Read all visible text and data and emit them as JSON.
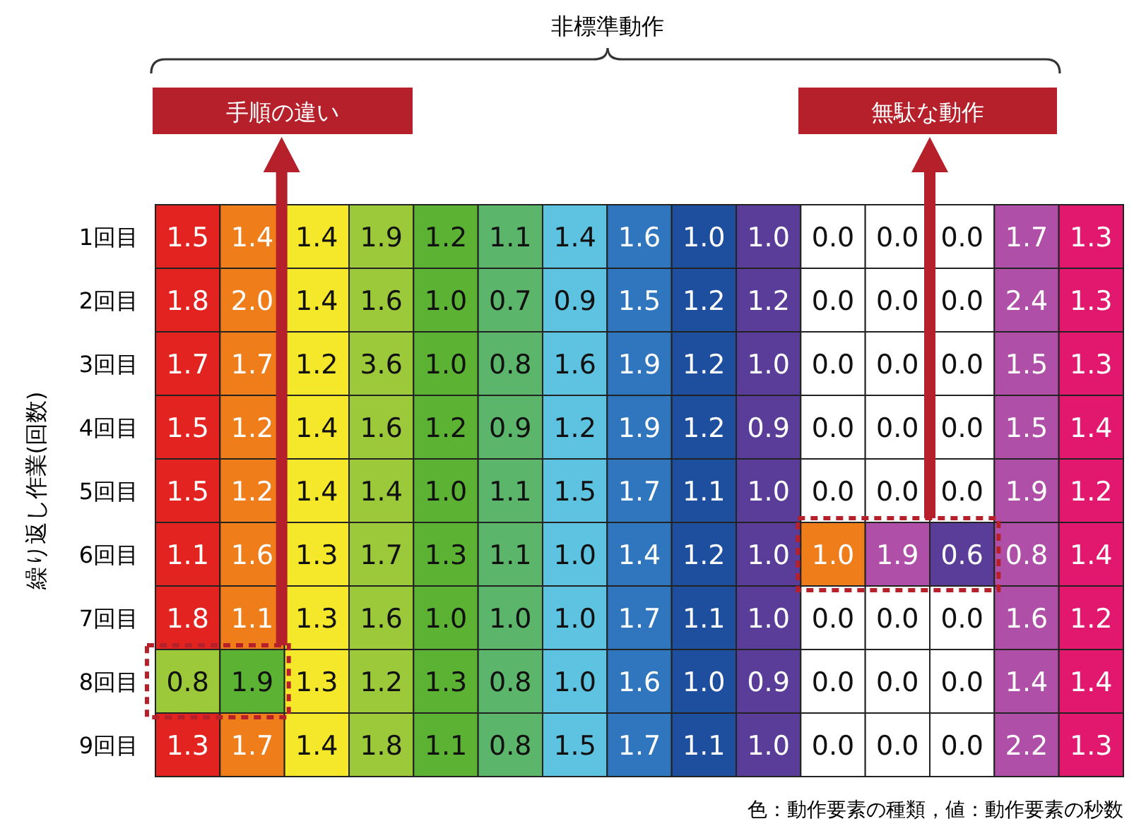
{
  "chart_data": {
    "type": "heatmap",
    "title": "非標準動作",
    "ylabel": "繰り返し作業(回数)",
    "categories": [
      null,
      null,
      null,
      null,
      null,
      null,
      null,
      null,
      null,
      null,
      null,
      null,
      null,
      null,
      null
    ],
    "y_categories": [
      "1回目",
      "2回目",
      "3回目",
      "4回目",
      "5回目",
      "6回目",
      "7回目",
      "8回目",
      "9回目"
    ],
    "cells": [
      [
        1.5,
        1.4,
        1.4,
        1.9,
        1.2,
        1.1,
        1.4,
        1.6,
        1.0,
        1.0,
        0.0,
        0.0,
        0.0,
        1.7,
        1.3
      ],
      [
        1.8,
        2.0,
        1.4,
        1.6,
        1.0,
        0.7,
        0.9,
        1.5,
        1.2,
        1.2,
        0.0,
        0.0,
        0.0,
        2.4,
        1.3
      ],
      [
        1.7,
        1.7,
        1.2,
        3.6,
        1.0,
        0.8,
        1.6,
        1.9,
        1.2,
        1.0,
        0.0,
        0.0,
        0.0,
        1.5,
        1.3
      ],
      [
        1.5,
        1.2,
        1.4,
        1.6,
        1.2,
        0.9,
        1.2,
        1.9,
        1.2,
        0.9,
        0.0,
        0.0,
        0.0,
        1.5,
        1.4
      ],
      [
        1.5,
        1.2,
        1.4,
        1.4,
        1.0,
        1.1,
        1.5,
        1.7,
        1.1,
        1.0,
        0.0,
        0.0,
        0.0,
        1.9,
        1.2
      ],
      [
        1.1,
        1.6,
        1.3,
        1.7,
        1.3,
        1.1,
        1.0,
        1.4,
        1.2,
        1.0,
        1.0,
        1.9,
        0.6,
        0.8,
        1.4
      ],
      [
        1.8,
        1.1,
        1.3,
        1.6,
        1.0,
        1.0,
        1.0,
        1.7,
        1.1,
        1.0,
        0.0,
        0.0,
        0.0,
        1.6,
        1.2
      ],
      [
        0.8,
        1.9,
        1.3,
        1.2,
        1.3,
        0.8,
        1.0,
        1.6,
        1.0,
        0.9,
        0.0,
        0.0,
        0.0,
        1.4,
        1.4
      ],
      [
        1.3,
        1.7,
        1.4,
        1.8,
        1.1,
        0.8,
        1.5,
        1.7,
        1.1,
        1.0,
        0.0,
        0.0,
        0.0,
        2.2,
        1.3
      ]
    ],
    "colors": [
      [
        "#e3231f",
        "#ef7d1a",
        "#f5e72a",
        "#9cc93a",
        "#5cb233",
        "#5bb56a",
        "#5ec3e0",
        "#2f76bf",
        "#1d4f9e",
        "#5a3d98",
        "#ffffff",
        "#ffffff",
        "#ffffff",
        "#b04fa8",
        "#e2176e"
      ],
      [
        "#e3231f",
        "#ef7d1a",
        "#f5e72a",
        "#9cc93a",
        "#5cb233",
        "#5bb56a",
        "#5ec3e0",
        "#2f76bf",
        "#1d4f9e",
        "#5a3d98",
        "#ffffff",
        "#ffffff",
        "#ffffff",
        "#b04fa8",
        "#e2176e"
      ],
      [
        "#e3231f",
        "#ef7d1a",
        "#f5e72a",
        "#9cc93a",
        "#5cb233",
        "#5bb56a",
        "#5ec3e0",
        "#2f76bf",
        "#1d4f9e",
        "#5a3d98",
        "#ffffff",
        "#ffffff",
        "#ffffff",
        "#b04fa8",
        "#e2176e"
      ],
      [
        "#e3231f",
        "#ef7d1a",
        "#f5e72a",
        "#9cc93a",
        "#5cb233",
        "#5bb56a",
        "#5ec3e0",
        "#2f76bf",
        "#1d4f9e",
        "#5a3d98",
        "#ffffff",
        "#ffffff",
        "#ffffff",
        "#b04fa8",
        "#e2176e"
      ],
      [
        "#e3231f",
        "#ef7d1a",
        "#f5e72a",
        "#9cc93a",
        "#5cb233",
        "#5bb56a",
        "#5ec3e0",
        "#2f76bf",
        "#1d4f9e",
        "#5a3d98",
        "#ffffff",
        "#ffffff",
        "#ffffff",
        "#b04fa8",
        "#e2176e"
      ],
      [
        "#e3231f",
        "#ef7d1a",
        "#f5e72a",
        "#9cc93a",
        "#5cb233",
        "#5bb56a",
        "#5ec3e0",
        "#2f76bf",
        "#1d4f9e",
        "#5a3d98",
        "#ef7d1a",
        "#b04fa8",
        "#5a3d98",
        "#b04fa8",
        "#e2176e"
      ],
      [
        "#e3231f",
        "#ef7d1a",
        "#f5e72a",
        "#9cc93a",
        "#5cb233",
        "#5bb56a",
        "#5ec3e0",
        "#2f76bf",
        "#1d4f9e",
        "#5a3d98",
        "#ffffff",
        "#ffffff",
        "#ffffff",
        "#b04fa8",
        "#e2176e"
      ],
      [
        "#9cc93a",
        "#5cb233",
        "#f5e72a",
        "#9cc93a",
        "#5cb233",
        "#5bb56a",
        "#5ec3e0",
        "#2f76bf",
        "#1d4f9e",
        "#5a3d98",
        "#ffffff",
        "#ffffff",
        "#ffffff",
        "#b04fa8",
        "#e2176e"
      ],
      [
        "#e3231f",
        "#ef7d1a",
        "#f5e72a",
        "#9cc93a",
        "#5cb233",
        "#5bb56a",
        "#5ec3e0",
        "#2f76bf",
        "#1d4f9e",
        "#5a3d98",
        "#ffffff",
        "#ffffff",
        "#ffffff",
        "#b04fa8",
        "#e2176e"
      ]
    ],
    "cell_labels": [
      [
        "1.5",
        "1.4",
        "1.4",
        "1.9",
        "1.2",
        "1.1",
        "1.4",
        "1.6",
        "1.0",
        "1.0",
        "0.0",
        "0.0",
        "0.0",
        "1.7",
        "1.3"
      ],
      [
        "1.8",
        "2.0",
        "1.4",
        "1.6",
        "1.0",
        "0.7",
        "0.9",
        "1.5",
        "1.2",
        "1.2",
        "0.0",
        "0.0",
        "0.0",
        "2.4",
        "1.3"
      ],
      [
        "1.7",
        "1.7",
        "1.2",
        "3.6",
        "1.0",
        "0.8",
        "1.6",
        "1.9",
        "1.2",
        "1.0",
        "0.0",
        "0.0",
        "0.0",
        "1.5",
        "1.3"
      ],
      [
        "1.5",
        "1.2",
        "1.4",
        "1.6",
        "1.2",
        "0.9",
        "1.2",
        "1.9",
        "1.2",
        "0.9",
        "0.0",
        "0.0",
        "0.0",
        "1.5",
        "1.4"
      ],
      [
        "1.5",
        "1.2",
        "1.4",
        "1.4",
        "1.0",
        "1.1",
        "1.5",
        "1.7",
        "1.1",
        "1.0",
        "0.0",
        "0.0",
        "0.0",
        "1.9",
        "1.2"
      ],
      [
        "1.1",
        "1.6",
        "1.3",
        "1.7",
        "1.3",
        "1.1",
        "1.0",
        "1.4",
        "1.2",
        "1.0",
        "1.0",
        "1.9",
        "0.6",
        "0.8",
        "1.4"
      ],
      [
        "1.8",
        "1.1",
        "1.3",
        "1.6",
        "1.0",
        "1.0",
        "1.0",
        "1.7",
        "1.1",
        "1.0",
        "0.0",
        "0.0",
        "0.0",
        "1.6",
        "1.2"
      ],
      [
        "0.8",
        "1.9",
        "1.3",
        "1.2",
        "1.3",
        "0.8",
        "1.0",
        "1.6",
        "1.0",
        "0.9",
        "0.0",
        "0.0",
        "0.0",
        "1.4",
        "1.4"
      ],
      [
        "1.3",
        "1.7",
        "1.4",
        "1.8",
        "1.1",
        "0.8",
        "1.5",
        "1.7",
        "1.1",
        "1.0",
        "0.0",
        "0.0",
        "0.0",
        "2.2",
        "1.3"
      ]
    ],
    "data_labels": true,
    "annotations": [
      "手順の違い",
      "無駄な動作",
      "色：動作要素の種類，値：動作要素の秒数"
    ]
  }
}
